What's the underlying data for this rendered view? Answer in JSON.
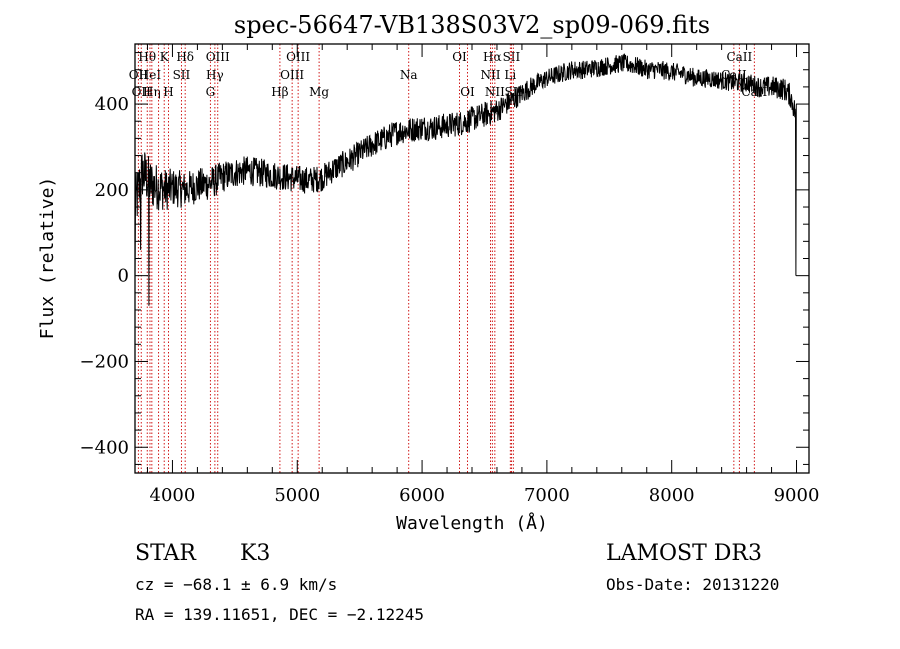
{
  "chart_data": {
    "type": "line",
    "title": "spec-56647-VB138S03V2_sp09-069.fits",
    "xlabel": "Wavelength (Å)",
    "ylabel": "Flux (relative)",
    "xlim": [
      3700,
      9100
    ],
    "ylim": [
      -460,
      540
    ],
    "xticks": [
      4000,
      5000,
      6000,
      7000,
      8000,
      9000
    ],
    "yticks": [
      -400,
      -200,
      0,
      200,
      400
    ],
    "xtick_labels": [
      "4000",
      "5000",
      "6000",
      "7000",
      "8000",
      "9000"
    ],
    "ytick_labels": [
      "−400",
      "−200",
      "0",
      "200",
      "400"
    ],
    "series": [
      {
        "name": "flux",
        "anchors": [
          [
            3700,
            160
          ],
          [
            3730,
            200
          ],
          [
            3760,
            240
          ],
          [
            3790,
            230
          ],
          [
            3820,
            215
          ],
          [
            3850,
            210
          ],
          [
            3900,
            205
          ],
          [
            3950,
            200
          ],
          [
            4000,
            205
          ],
          [
            4100,
            200
          ],
          [
            4200,
            210
          ],
          [
            4300,
            215
          ],
          [
            4400,
            230
          ],
          [
            4500,
            240
          ],
          [
            4600,
            245
          ],
          [
            4700,
            240
          ],
          [
            4800,
            235
          ],
          [
            4900,
            230
          ],
          [
            5000,
            225
          ],
          [
            5100,
            222
          ],
          [
            5200,
            228
          ],
          [
            5300,
            250
          ],
          [
            5400,
            265
          ],
          [
            5500,
            285
          ],
          [
            5600,
            305
          ],
          [
            5700,
            320
          ],
          [
            5800,
            335
          ],
          [
            5900,
            340
          ],
          [
            6000,
            345
          ],
          [
            6100,
            345
          ],
          [
            6200,
            350
          ],
          [
            6300,
            355
          ],
          [
            6400,
            365
          ],
          [
            6500,
            375
          ],
          [
            6600,
            385
          ],
          [
            6700,
            405
          ],
          [
            6800,
            425
          ],
          [
            6900,
            445
          ],
          [
            7000,
            460
          ],
          [
            7100,
            470
          ],
          [
            7200,
            480
          ],
          [
            7300,
            480
          ],
          [
            7400,
            485
          ],
          [
            7500,
            490
          ],
          [
            7600,
            495
          ],
          [
            7700,
            490
          ],
          [
            7800,
            480
          ],
          [
            7900,
            480
          ],
          [
            8000,
            475
          ],
          [
            8100,
            470
          ],
          [
            8200,
            460
          ],
          [
            8300,
            460
          ],
          [
            8400,
            455
          ],
          [
            8500,
            450
          ],
          [
            8600,
            450
          ],
          [
            8700,
            440
          ],
          [
            8800,
            440
          ],
          [
            8900,
            435
          ],
          [
            8950,
            420
          ],
          [
            8990,
            380
          ]
        ],
        "noise": [
          [
            3700,
            70
          ],
          [
            4000,
            45
          ],
          [
            4500,
            35
          ],
          [
            5500,
            30
          ],
          [
            6500,
            30
          ],
          [
            7000,
            22
          ],
          [
            8500,
            22
          ],
          [
            9000,
            28
          ]
        ],
        "dropouts": [
          [
            3700,
            0
          ],
          [
            3745,
            60
          ],
          [
            3810,
            -70
          ],
          [
            8995,
            0
          ]
        ]
      }
    ],
    "lines": [
      {
        "wl": 3727,
        "label": "OII",
        "row": 2
      },
      {
        "wl": 3750,
        "label": "OII",
        "row": 3
      },
      {
        "wl": 3798,
        "label": "Hθ",
        "row": 1
      },
      {
        "wl": 3820,
        "label": "HeI",
        "row": 2
      },
      {
        "wl": 3835,
        "label": "Hη",
        "row": 3
      },
      {
        "wl": 3889,
        "label": "",
        "row": 0
      },
      {
        "wl": 3934,
        "label": "K",
        "row": 1
      },
      {
        "wl": 3968,
        "label": "H",
        "row": 3
      },
      {
        "wl": 4072,
        "label": "SII",
        "row": 2
      },
      {
        "wl": 4102,
        "label": "Hδ",
        "row": 1
      },
      {
        "wl": 4304,
        "label": "G",
        "row": 3
      },
      {
        "wl": 4340,
        "label": "Hγ",
        "row": 2
      },
      {
        "wl": 4363,
        "label": "OIII",
        "row": 1
      },
      {
        "wl": 4861,
        "label": "Hβ",
        "row": 3
      },
      {
        "wl": 4959,
        "label": "OIII",
        "row": 2
      },
      {
        "wl": 5007,
        "label": "OIII",
        "row": 1
      },
      {
        "wl": 5175,
        "label": "Mg",
        "row": 3
      },
      {
        "wl": 5893,
        "label": "Na",
        "row": 2
      },
      {
        "wl": 6300,
        "label": "OI",
        "row": 1
      },
      {
        "wl": 6364,
        "label": "OI",
        "row": 3
      },
      {
        "wl": 6548,
        "label": "NII",
        "row": 2
      },
      {
        "wl": 6563,
        "label": "Hα",
        "row": 1
      },
      {
        "wl": 6583,
        "label": "NII",
        "row": 3
      },
      {
        "wl": 6707,
        "label": "Li",
        "row": 2
      },
      {
        "wl": 6716,
        "label": "SII",
        "row": 1
      },
      {
        "wl": 6731,
        "label": "SII",
        "row": 3
      },
      {
        "wl": 8498,
        "label": "CaII",
        "row": 2
      },
      {
        "wl": 8542,
        "label": "CaII",
        "row": 1
      },
      {
        "wl": 8662,
        "label": "CaII",
        "row": 3
      }
    ]
  },
  "info": {
    "class": "STAR",
    "subclass": "K3",
    "survey": "LAMOST DR3",
    "cz": "cz = −68.1 ± 6.9 km/s",
    "obs_date": "Obs-Date: 20131220",
    "radec": "RA = 139.11651, DEC =  −2.12245"
  }
}
